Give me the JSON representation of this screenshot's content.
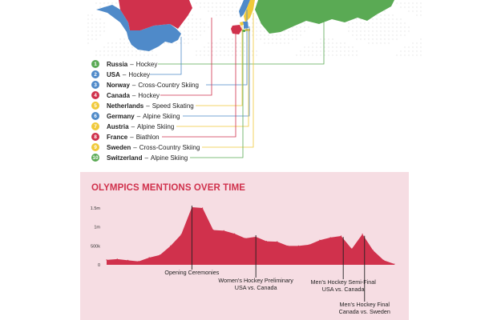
{
  "map": {
    "colors": {
      "russia": "#5aaa54",
      "usa": "#4f8ac9",
      "canada": "#d0314c",
      "france": "#d0314c",
      "sweden": "#f0c93a",
      "norway": "#4f8ac9",
      "grid_dots": "#e2e2e2"
    }
  },
  "rankings": [
    {
      "rank": "1",
      "country": "Russia",
      "sport": "Hockey",
      "color": "#5aaa54"
    },
    {
      "rank": "2",
      "country": "USA",
      "sport": "Hockey",
      "color": "#4f8ac9"
    },
    {
      "rank": "3",
      "country": "Norway",
      "sport": "Cross-Country Skiing",
      "color": "#4f8ac9"
    },
    {
      "rank": "4",
      "country": "Canada",
      "sport": "Hockey",
      "color": "#d0314c"
    },
    {
      "rank": "5",
      "country": "Netherlands",
      "sport": "Speed Skating",
      "color": "#f0c93a"
    },
    {
      "rank": "6",
      "country": "Germany",
      "sport": "Alpine Skiing",
      "color": "#4f8ac9"
    },
    {
      "rank": "7",
      "country": "Austria",
      "sport": "Alpine Skiing",
      "color": "#f0c93a"
    },
    {
      "rank": "8",
      "country": "France",
      "sport": "Biathlon",
      "color": "#d0314c"
    },
    {
      "rank": "9",
      "country": "Sweden",
      "sport": "Cross-Country Skiing",
      "color": "#f0c93a"
    },
    {
      "rank": "10",
      "country": "Switzerland",
      "sport": "Alpine Skiing",
      "color": "#5aaa54"
    }
  ],
  "chart_data": {
    "type": "area",
    "title": "OLYMPICS MENTIONS OVER TIME",
    "xlabel": "",
    "ylabel": "",
    "ylim": [
      0,
      1500000
    ],
    "y_ticks": [
      {
        "value": 0,
        "label": "0"
      },
      {
        "value": 500000,
        "label": "500k"
      },
      {
        "value": 1000000,
        "label": "1m"
      },
      {
        "value": 1500000,
        "label": "1.5m"
      }
    ],
    "x": [
      0,
      1,
      2,
      3,
      4,
      5,
      6,
      7,
      8,
      9,
      10,
      11,
      12,
      13,
      14,
      15,
      16,
      17,
      18,
      19,
      20,
      21,
      22,
      23,
      24,
      25,
      26,
      27
    ],
    "values": [
      130000,
      150000,
      120000,
      90000,
      190000,
      260000,
      500000,
      800000,
      1520000,
      1500000,
      920000,
      900000,
      820000,
      700000,
      740000,
      620000,
      610000,
      500000,
      500000,
      530000,
      650000,
      720000,
      760000,
      420000,
      810000,
      380000,
      120000,
      20000
    ],
    "color": "#d0314c",
    "annotations": [
      {
        "x": 8,
        "lines": [
          "Opening Ceremonies"
        ]
      },
      {
        "x": 14,
        "lines": [
          "Women's Hockey Preliminary",
          "USA vs. Canada"
        ]
      },
      {
        "x": 22.2,
        "lines": [
          "Men's Hockey Semi-Final",
          "USA vs. Canada"
        ]
      },
      {
        "x": 24.2,
        "lines": [
          "Men's Hockey Final",
          "Canada vs. Sweden"
        ]
      }
    ]
  }
}
